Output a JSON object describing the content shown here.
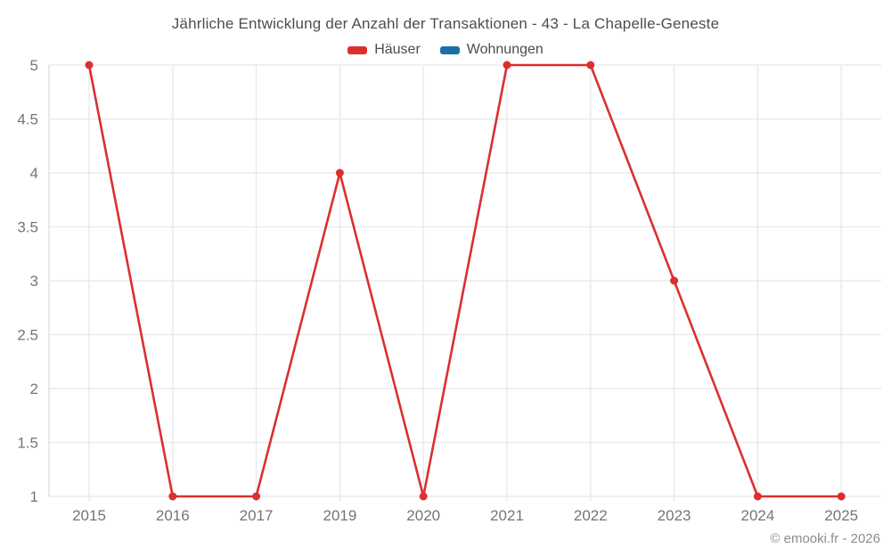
{
  "chart_data": {
    "type": "line",
    "title": "Jährliche Entwicklung der Anzahl der Transaktionen - 43 - La Chapelle-Geneste",
    "categories": [
      "2015",
      "2016",
      "2017",
      "2019",
      "2020",
      "2021",
      "2022",
      "2023",
      "2024",
      "2025"
    ],
    "series": [
      {
        "name": "Häuser",
        "color": "#db2f2f",
        "values": [
          5,
          1,
          1,
          4,
          1,
          5,
          5,
          3,
          1,
          1
        ]
      },
      {
        "name": "Wohnungen",
        "color": "#1a6fa8",
        "values": []
      }
    ],
    "xlabel": "",
    "ylabel": "",
    "ylim": [
      1,
      5
    ],
    "ytick_step": 0.5,
    "ytick_labels": [
      "1",
      "1.5",
      "2",
      "2.5",
      "3",
      "3.5",
      "4",
      "4.5",
      "5"
    ],
    "grid": true,
    "legend_position": "top"
  },
  "legend": {
    "items": [
      {
        "label": "Häuser",
        "color": "#db2f2f"
      },
      {
        "label": "Wohnungen",
        "color": "#1a6fa8"
      }
    ]
  },
  "footer": {
    "credit": "© emooki.fr - 2026"
  },
  "colors": {
    "series_hauser": "#db2f2f",
    "series_wohnungen": "#1a6fa8",
    "grid": "#e8e8e8",
    "axis": "#dcdcdc",
    "tick_text": "#757575",
    "title_text": "#4d4d4d",
    "footer_text": "#8c8c8c"
  }
}
